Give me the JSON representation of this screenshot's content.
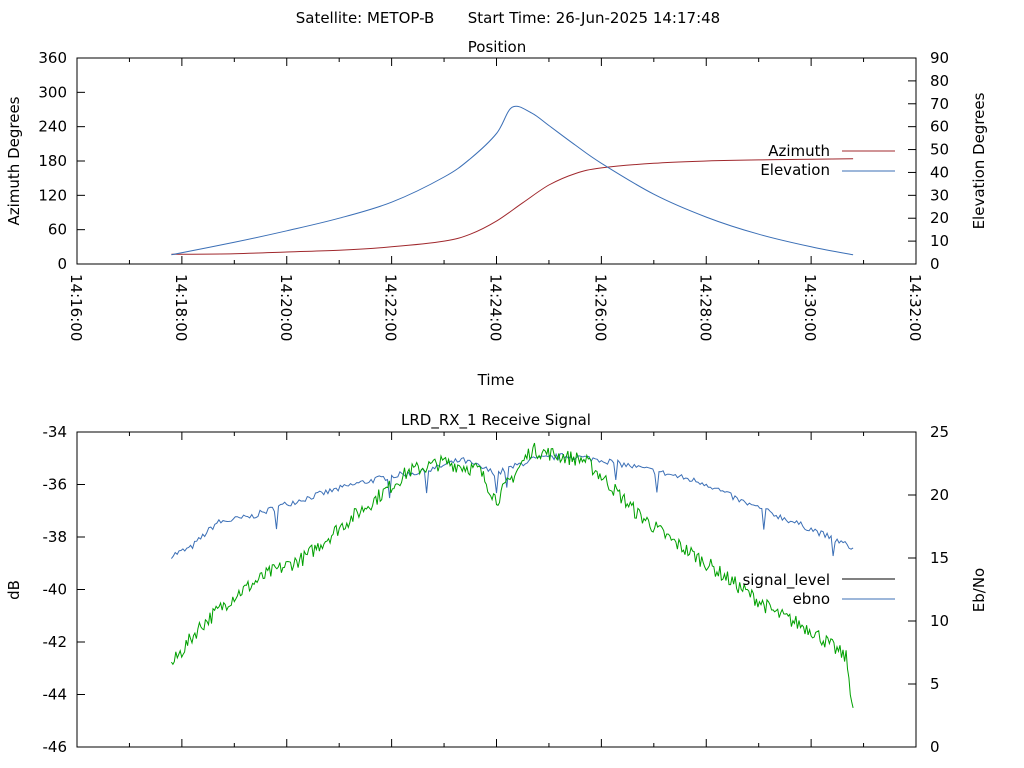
{
  "header": {
    "satellite": "Satellite: METOP-B",
    "start_time": "Start Time: 26-Jun-2025 14:17:48"
  },
  "chart_data": [
    {
      "type": "line",
      "title": "Position",
      "xlabel": "Time",
      "ylabel": "Azimuth Degrees",
      "y2label": "Elevation Degrees",
      "xlim": [
        "14:16:00",
        "14:32:00"
      ],
      "ylim": [
        0,
        360
      ],
      "y2lim": [
        0,
        90
      ],
      "x_ticks": [
        "14:16:00",
        "14:18:00",
        "14:20:00",
        "14:22:00",
        "14:24:00",
        "14:26:00",
        "14:28:00",
        "14:30:00",
        "14:32:00"
      ],
      "y_ticks": [
        "0",
        "60",
        "120",
        "180",
        "240",
        "300",
        "360"
      ],
      "y2_ticks": [
        "0",
        "10",
        "20",
        "30",
        "40",
        "50",
        "60",
        "70",
        "80",
        "90"
      ],
      "legend_position": "right",
      "series": [
        {
          "name": "Azimuth",
          "axis": "y",
          "color": "#a0282d",
          "x": [
            "14:17:48",
            "14:19:00",
            "14:20:00",
            "14:21:00",
            "14:22:00",
            "14:23:00",
            "14:23:30",
            "14:24:00",
            "14:24:30",
            "14:25:00",
            "14:25:30",
            "14:26:00",
            "14:27:00",
            "14:28:00",
            "14:29:00",
            "14:30:00",
            "14:30:48"
          ],
          "values": [
            17,
            18,
            21,
            24,
            30,
            40,
            52,
            75,
            107,
            138,
            158,
            168,
            176,
            180,
            182,
            183,
            184
          ]
        },
        {
          "name": "Elevation",
          "axis": "y2",
          "color": "#3b6fb6",
          "x": [
            "14:17:48",
            "14:19:00",
            "14:20:00",
            "14:21:00",
            "14:22:00",
            "14:23:00",
            "14:23:30",
            "14:24:00",
            "14:24:18",
            "14:24:40",
            "14:25:00",
            "14:25:30",
            "14:26:00",
            "14:27:00",
            "14:28:00",
            "14:29:00",
            "14:30:00",
            "14:30:48"
          ],
          "values": [
            4,
            9.5,
            14.5,
            20,
            27,
            38,
            46,
            57,
            68.5,
            66,
            60.5,
            52,
            44,
            30.5,
            20.5,
            13,
            7.5,
            4
          ]
        }
      ]
    },
    {
      "type": "line",
      "title": "LRD_RX_1 Receive Signal",
      "ylabel": "dB",
      "y2label": "Eb/No",
      "ylim": [
        -46,
        -34
      ],
      "y2lim": [
        0,
        25
      ],
      "y_ticks": [
        "-34",
        "-36",
        "-38",
        "-40",
        "-42",
        "-44",
        "-46"
      ],
      "y2_ticks": [
        "0",
        "5",
        "10",
        "15",
        "20",
        "25"
      ],
      "legend_position": "right",
      "series": [
        {
          "name": "signal_level",
          "axis": "y",
          "color": "#000000",
          "values": []
        },
        {
          "name": "ebno",
          "axis": "y2",
          "color": "#3b6fb6",
          "x": [
            "14:17:48",
            "14:18:10",
            "14:18:40",
            "14:19:20",
            "14:20:00",
            "14:20:40",
            "14:21:20",
            "14:22:00",
            "14:22:40",
            "14:23:20",
            "14:24:00",
            "14:24:40",
            "14:25:20",
            "14:26:00",
            "14:26:40",
            "14:27:20",
            "14:28:00",
            "14:28:40",
            "14:29:20",
            "14:30:00",
            "14:30:48"
          ],
          "values": [
            15.2,
            15.8,
            17.8,
            18.3,
            19.3,
            20.1,
            20.9,
            21.5,
            21.9,
            22.8,
            21.7,
            22.8,
            23.1,
            22.8,
            22.2,
            21.6,
            20.9,
            19.5,
            18.4,
            17.3,
            15.8
          ]
        },
        {
          "name": "",
          "axis": "y2",
          "color": "#00a000",
          "x": [
            "14:17:48",
            "14:18:20",
            "14:19:00",
            "14:19:40",
            "14:20:20",
            "14:21:00",
            "14:21:40",
            "14:22:20",
            "14:23:00",
            "14:23:40",
            "14:24:00",
            "14:24:40",
            "14:25:20",
            "14:25:40",
            "14:26:00",
            "14:26:40",
            "14:27:20",
            "14:28:00",
            "14:28:40",
            "14:29:20",
            "14:30:00",
            "14:30:40",
            "14:30:48"
          ],
          "values": [
            6.5,
            9.5,
            12,
            13.8,
            15,
            17.4,
            19.6,
            21.9,
            22.6,
            22,
            19.6,
            23.6,
            23,
            22.8,
            21.5,
            18.6,
            16.4,
            14.6,
            12.6,
            10.6,
            9.3,
            7.1,
            3.1
          ]
        }
      ]
    }
  ]
}
